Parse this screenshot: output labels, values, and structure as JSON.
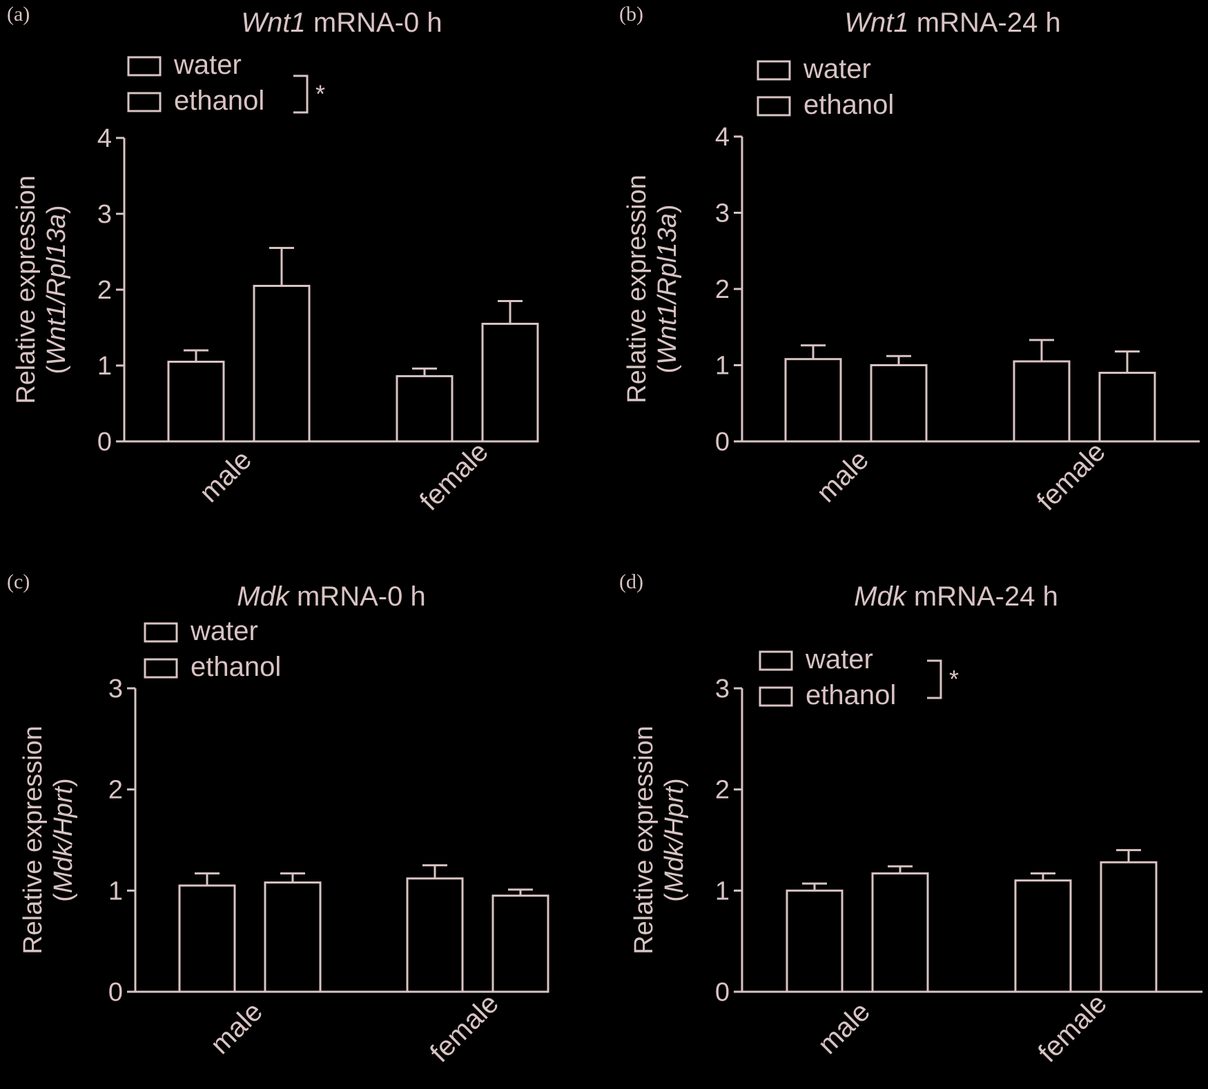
{
  "colors": {
    "background": "#000000",
    "ink": "#d9c3c3"
  },
  "chart_data": [
    {
      "panel": "(a)",
      "type": "bar",
      "title_italic": "Wnt1",
      "title_rest": " mRNA-0 h",
      "ylabel": "Relative expression",
      "ylabel_paren_open": "(",
      "ylabel_italic": "Wnt1/Rpl13a",
      "ylabel_paren_close": ")",
      "ylim": [
        0,
        4
      ],
      "yticks": [
        "0",
        "1",
        "2",
        "3",
        "4"
      ],
      "categories": [
        "male",
        "female"
      ],
      "series": [
        {
          "name": "water",
          "values": [
            1.05,
            0.86
          ],
          "errors": [
            0.15,
            0.1
          ]
        },
        {
          "name": "ethanol",
          "values": [
            2.05,
            1.55
          ],
          "errors": [
            0.5,
            0.3
          ]
        }
      ],
      "legend": [
        "water",
        "ethanol"
      ],
      "legend_position": "top-left",
      "significance": "*"
    },
    {
      "panel": "(b)",
      "type": "bar",
      "title_italic": "Wnt1",
      "title_rest": " mRNA-24 h",
      "ylabel": "Relative expression",
      "ylabel_paren_open": "(",
      "ylabel_italic": "Wnt1/Rpl13a",
      "ylabel_paren_close": ")",
      "ylim": [
        0,
        4
      ],
      "yticks": [
        "0",
        "1",
        "2",
        "3",
        "4"
      ],
      "categories": [
        "male",
        "female"
      ],
      "series": [
        {
          "name": "water",
          "values": [
            1.08,
            1.05
          ],
          "errors": [
            0.18,
            0.28
          ]
        },
        {
          "name": "ethanol",
          "values": [
            1.0,
            0.9
          ],
          "errors": [
            0.12,
            0.28
          ]
        }
      ],
      "legend": [
        "water",
        "ethanol"
      ],
      "legend_position": "top-left",
      "significance": ""
    },
    {
      "panel": "(c)",
      "type": "bar",
      "title_italic": "Mdk",
      "title_rest": " mRNA-0 h",
      "ylabel": "Relative expression",
      "ylabel_paren_open": "(",
      "ylabel_italic": "Mdk/Hprt",
      "ylabel_paren_close": ")",
      "ylim": [
        0,
        3
      ],
      "yticks": [
        "0",
        "1",
        "2",
        "3"
      ],
      "categories": [
        "male",
        "female"
      ],
      "series": [
        {
          "name": "water",
          "values": [
            1.05,
            1.12
          ],
          "errors": [
            0.12,
            0.13
          ]
        },
        {
          "name": "ethanol",
          "values": [
            1.08,
            0.95
          ],
          "errors": [
            0.09,
            0.06
          ]
        }
      ],
      "legend": [
        "water",
        "ethanol"
      ],
      "legend_position": "top-left",
      "significance": ""
    },
    {
      "panel": "(d)",
      "type": "bar",
      "title_italic": "Mdk",
      "title_rest": " mRNA-24 h",
      "ylabel": "Relative expression",
      "ylabel_paren_open": "(",
      "ylabel_italic": "Mdk/Hprt",
      "ylabel_paren_close": ")",
      "ylim": [
        0,
        3
      ],
      "yticks": [
        "0",
        "1",
        "2",
        "3"
      ],
      "categories": [
        "male",
        "female"
      ],
      "series": [
        {
          "name": "water",
          "values": [
            1.0,
            1.1
          ],
          "errors": [
            0.07,
            0.07
          ]
        },
        {
          "name": "ethanol",
          "values": [
            1.17,
            1.28
          ],
          "errors": [
            0.07,
            0.12
          ]
        }
      ],
      "legend": [
        "water",
        "ethanol"
      ],
      "legend_position": "top-left",
      "significance": "*"
    }
  ]
}
